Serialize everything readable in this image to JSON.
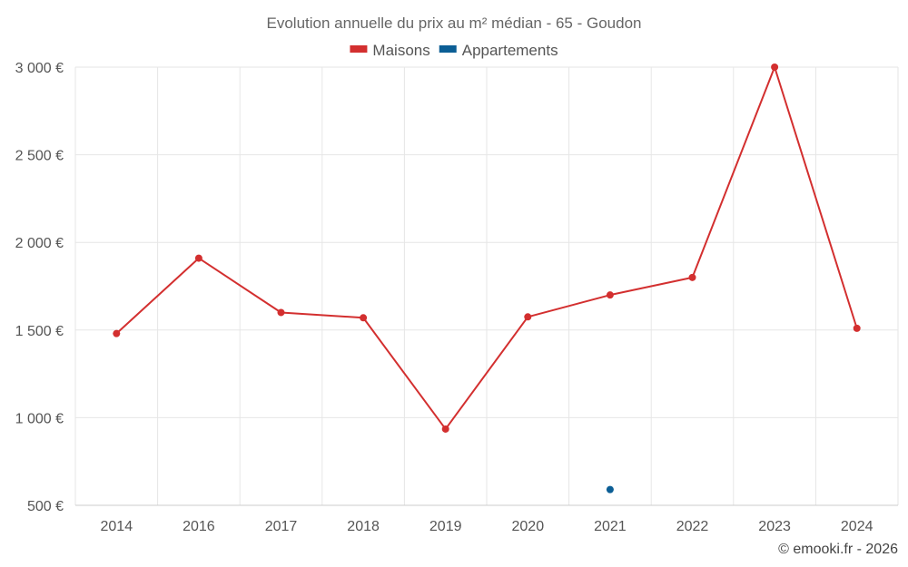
{
  "chart_data": {
    "type": "line",
    "title": "Evolution annuelle du prix au m² médian - 65 - Goudon",
    "categories": [
      "2014",
      "2016",
      "2017",
      "2018",
      "2019",
      "2020",
      "2021",
      "2022",
      "2023",
      "2024"
    ],
    "series": [
      {
        "name": "Maisons",
        "color": "#d32f2f",
        "values": [
          1480,
          1910,
          1600,
          1570,
          935,
          1575,
          1700,
          1800,
          3000,
          1510
        ]
      },
      {
        "name": "Appartements",
        "color": "#0b5e95",
        "values": [
          null,
          null,
          null,
          null,
          null,
          null,
          590,
          null,
          null,
          null
        ]
      }
    ],
    "ylim": [
      500,
      3000
    ],
    "yticks": [
      500,
      1000,
      1500,
      2000,
      2500,
      3000
    ],
    "ytick_labels": [
      "500 €",
      "1 000 €",
      "1 500 €",
      "2 000 €",
      "2 500 €",
      "3 000 €"
    ],
    "grid": true,
    "legend_position": "top-center"
  },
  "credit": "© emooki.fr - 2026"
}
